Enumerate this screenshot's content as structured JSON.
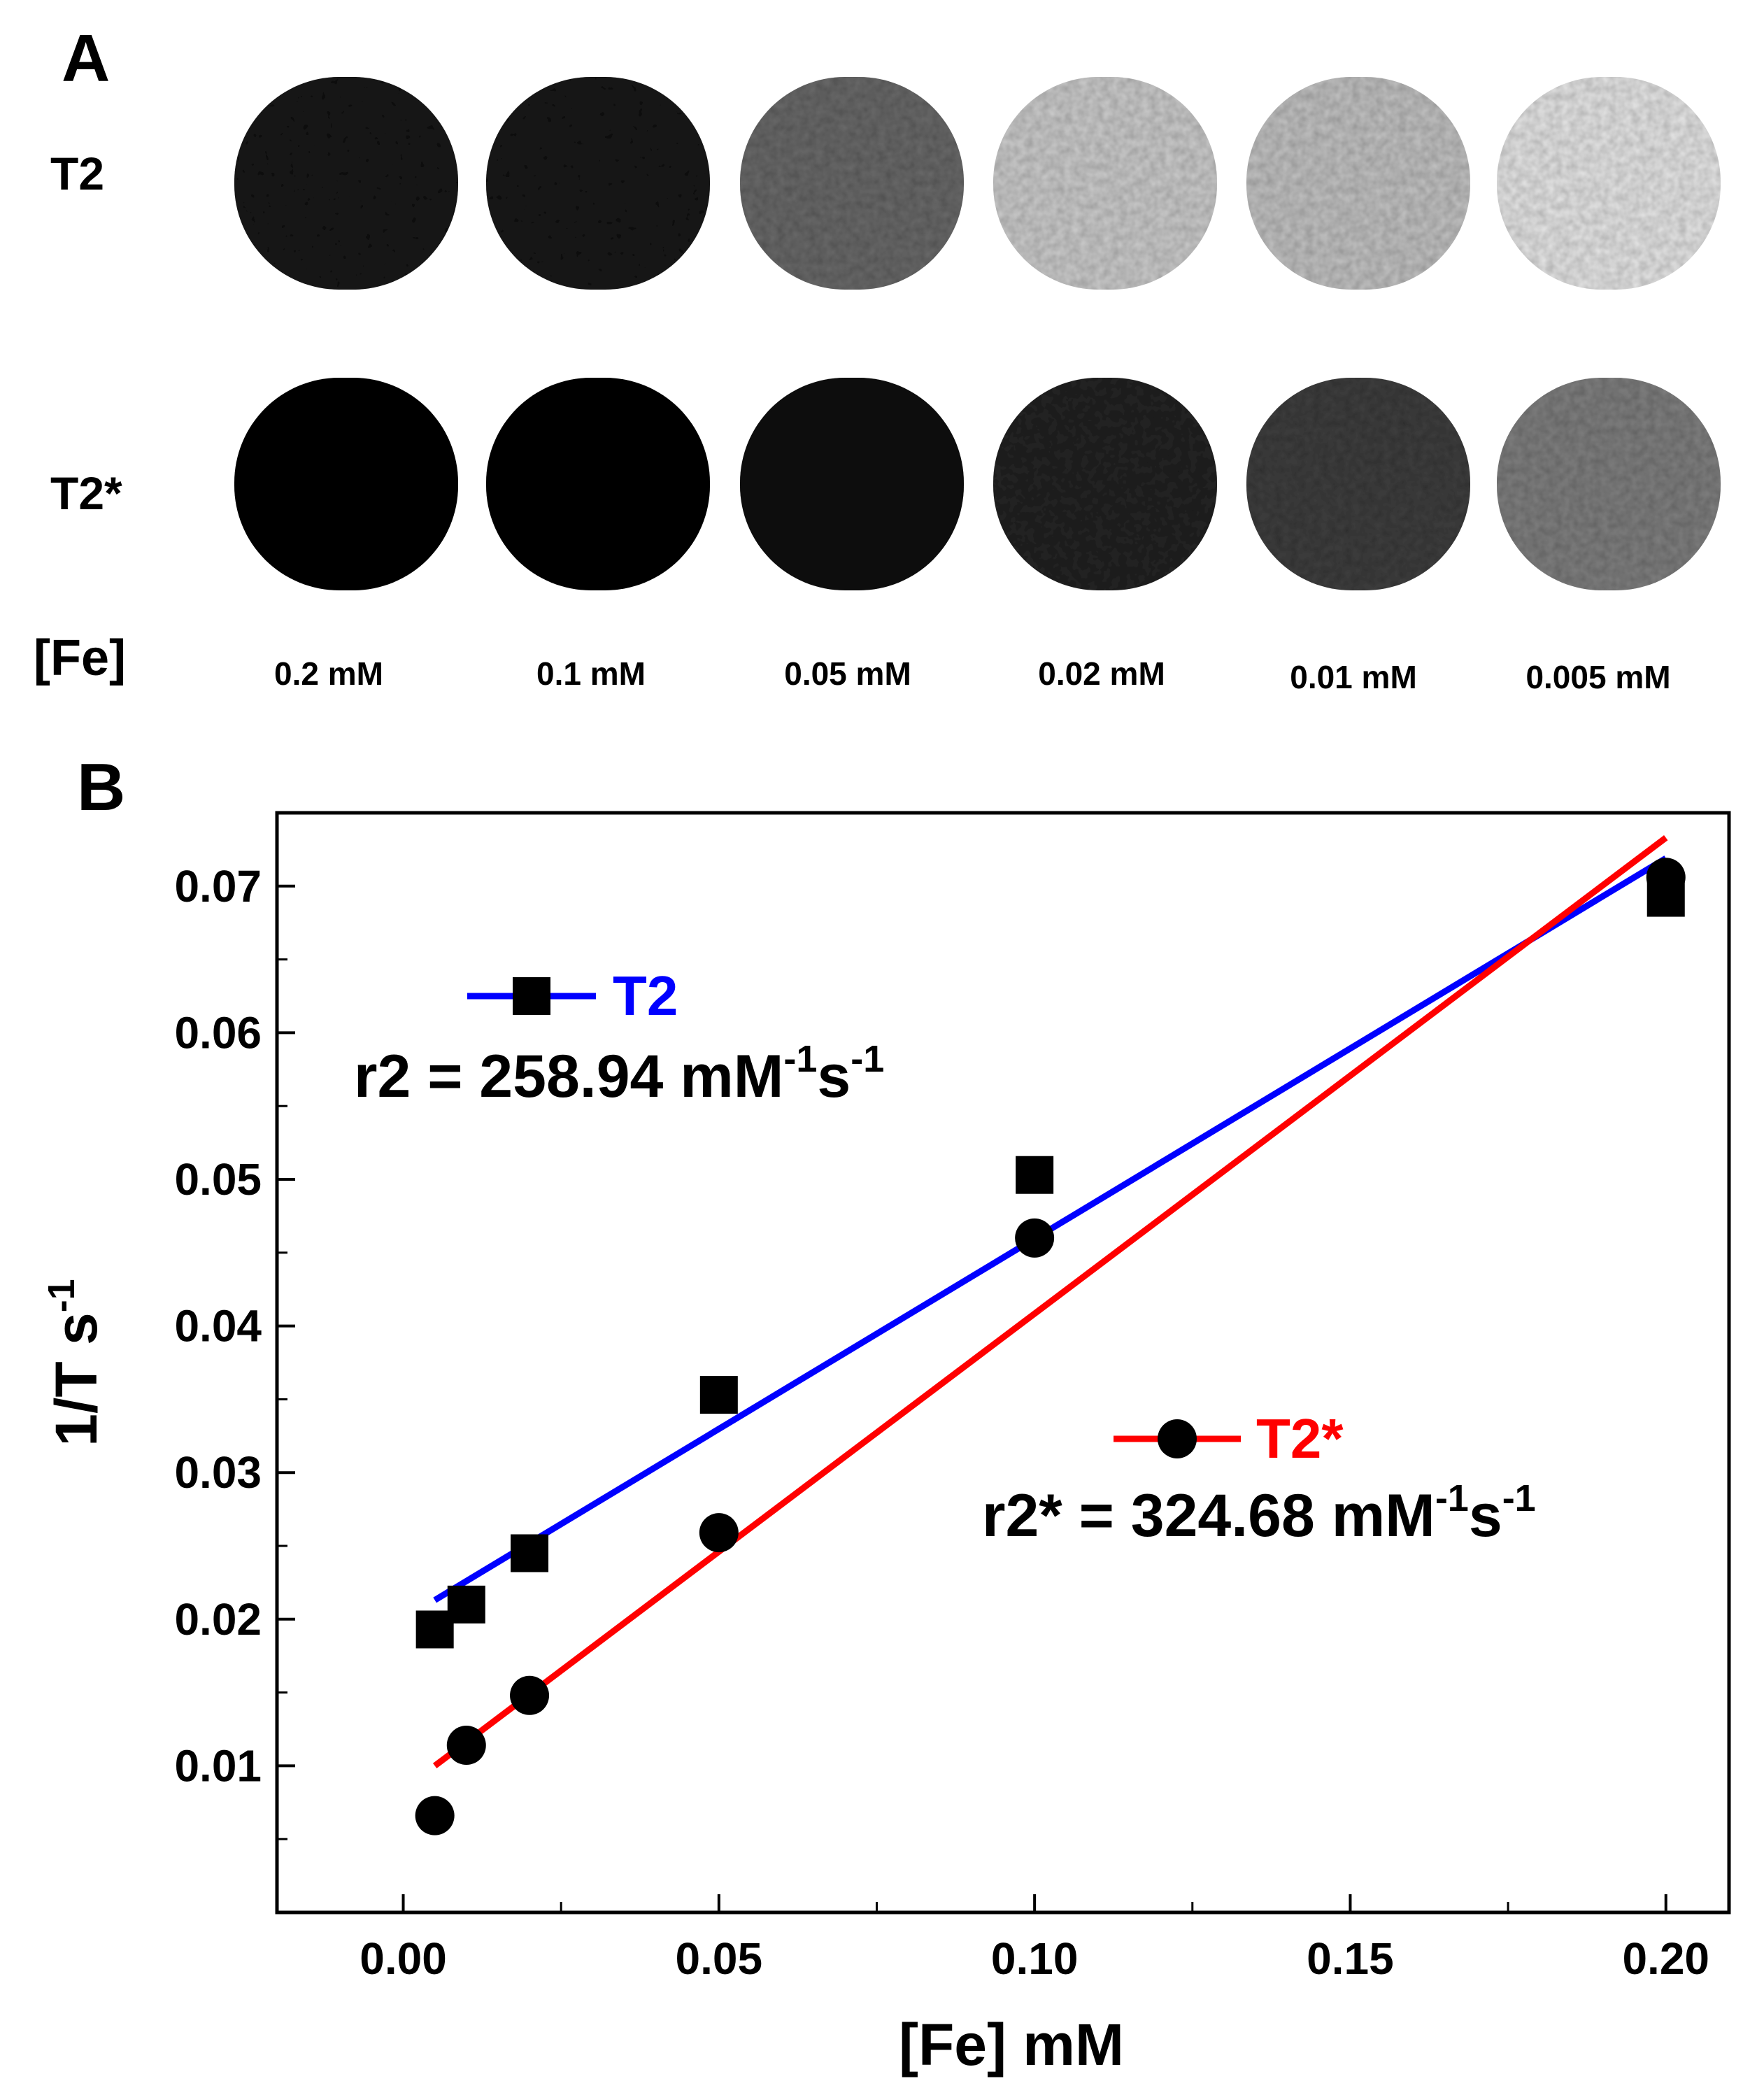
{
  "panel_a": {
    "letter": "A",
    "rows": [
      "T2",
      "T2*"
    ],
    "concentration_label": "[Fe]",
    "concentrations": [
      "0.2 mM",
      "0.1 mM",
      "0.05 mM",
      "0.02 mM",
      "0.01 mM",
      "0.005 mM"
    ],
    "t2_gray_levels": [
      0.1,
      0.12,
      0.42,
      0.8,
      0.76,
      0.9
    ],
    "t2star_gray_levels": [
      0.03,
      0.05,
      0.08,
      0.15,
      0.25,
      0.5
    ]
  },
  "panel_b": {
    "letter": "B"
  },
  "chart_data": {
    "type": "scatter",
    "xlabel": "[Fe] mM",
    "ylabel": "1/T s",
    "ylabel_sup": "-1",
    "xlim": [
      -0.02,
      0.21
    ],
    "ylim": [
      0.0,
      0.075
    ],
    "xticks": [
      "0.00",
      "0.05",
      "0.10",
      "0.15",
      "0.20"
    ],
    "yticks": [
      "0.01",
      "0.02",
      "0.03",
      "0.04",
      "0.05",
      "0.06",
      "0.07"
    ],
    "series": [
      {
        "name": "T2",
        "marker": "square",
        "line_color": "#0000ff",
        "x": [
          0.005,
          0.01,
          0.02,
          0.05,
          0.1,
          0.2
        ],
        "y": [
          0.0193,
          0.021,
          0.0245,
          0.0353,
          0.0503,
          0.0692
        ],
        "fit": {
          "x": [
            0.005,
            0.2
          ],
          "y": [
            0.0213,
            0.0719
          ]
        },
        "annotation": {
          "prefix": "r2 = 258.94 mM",
          "sup1": "-1",
          "mid": "s",
          "sup2": "-1"
        }
      },
      {
        "name": "T2*",
        "marker": "circle",
        "line_color": "#ff0000",
        "x": [
          0.005,
          0.01,
          0.02,
          0.05,
          0.1,
          0.2
        ],
        "y": [
          0.0066,
          0.0114,
          0.0148,
          0.0259,
          0.046,
          0.0706
        ],
        "fit": {
          "x": [
            0.005,
            0.2
          ],
          "y": [
            0.01,
            0.0733
          ]
        },
        "annotation": {
          "prefix": "r2* = 324.68 mM",
          "sup1": "-1",
          "mid": "s",
          "sup2": "-1"
        }
      }
    ]
  }
}
